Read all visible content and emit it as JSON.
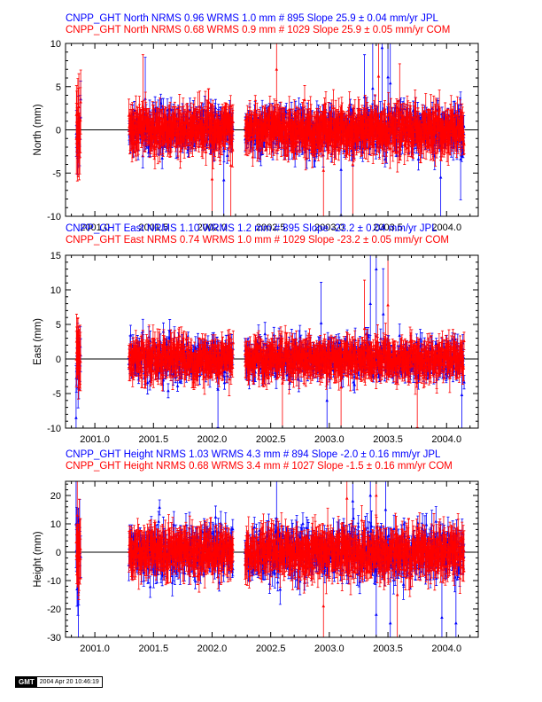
{
  "chart_data": [
    {
      "type": "scatter",
      "id": "north",
      "title_lines": [
        {
          "text": "CNPP_GHT North NRMS 0.96 WRMS  1.0 mm # 895 Slope   25.9 ±  0.04 mm/yr JPL",
          "color": "#0000ff"
        },
        {
          "text": "CNPP_GHT North NRMS 0.68 WRMS  0.9 mm # 1029 Slope   25.9 ±  0.05 mm/yr COM",
          "color": "#ff0000"
        }
      ],
      "xlabel": "",
      "ylabel": "North (mm)",
      "xlim": [
        2000.75,
        2004.27
      ],
      "ylim": [
        -10,
        10
      ],
      "xticks": [
        2001.0,
        2001.5,
        2002.0,
        2002.5,
        2003.0,
        2003.5,
        2004.0
      ],
      "xtick_labels": [
        "2001.0",
        "2001.5",
        "2002.0",
        "2002.5",
        "2003.0",
        "2003.5",
        "2004.0"
      ],
      "yticks": [
        -10,
        -5,
        0,
        5,
        10
      ],
      "ytick_labels": [
        "-10",
        "-5",
        "0",
        "5",
        "10"
      ],
      "zero_line": true,
      "series": [
        {
          "name": "JPL",
          "color": "#0000ff",
          "n": 895,
          "noise": 1.2,
          "err": 1.0,
          "segments": [
            [
              2000.84,
              2000.88
            ],
            [
              2001.29,
              2002.18
            ],
            [
              2002.28,
              2004.15
            ]
          ],
          "outliers": [
            [
              2001.43,
              3.6
            ],
            [
              2002.1,
              -5.8
            ],
            [
              2003.1,
              -4.6
            ],
            [
              2003.3,
              3.8
            ],
            [
              2003.37,
              4.8
            ],
            [
              2003.45,
              9.5
            ],
            [
              2003.5,
              6.1
            ],
            [
              2003.52,
              5.4
            ],
            [
              2003.95,
              -5.5
            ],
            [
              2004.12,
              -3.4
            ]
          ]
        },
        {
          "name": "COM",
          "color": "#ff0000",
          "n": 1029,
          "noise": 1.0,
          "err": 1.5,
          "segments": [
            [
              2000.84,
              2000.88
            ],
            [
              2001.29,
              2002.18
            ],
            [
              2002.28,
              2004.15
            ]
          ],
          "outliers": [
            [
              2001.41,
              2.8
            ],
            [
              2002.0,
              -5.7
            ],
            [
              2002.16,
              -4.1
            ],
            [
              2002.55,
              7.0
            ],
            [
              2002.95,
              -4.7
            ],
            [
              2003.2,
              -4.0
            ],
            [
              2003.42,
              6.2
            ],
            [
              2003.6,
              2.1
            ]
          ]
        }
      ]
    },
    {
      "type": "scatter",
      "id": "east",
      "title_lines": [
        {
          "text": "CNPP_GHT East NRMS 1.10 WRMS  1.2 mm # 895 Slope  -23.2 ±  0.04 mm/yr JPL",
          "color": "#0000ff"
        },
        {
          "text": "CNPP_GHT East NRMS 0.74 WRMS  1.0 mm # 1029 Slope  -23.2 ±  0.05 mm/yr COM",
          "color": "#ff0000"
        }
      ],
      "xlabel": "",
      "ylabel": "East (mm)",
      "xlim": [
        2000.75,
        2004.27
      ],
      "ylim": [
        -10,
        15
      ],
      "xticks": [
        2001.0,
        2001.5,
        2002.0,
        2002.5,
        2003.0,
        2003.5,
        2004.0
      ],
      "xtick_labels": [
        "2001.0",
        "2001.5",
        "2002.0",
        "2002.5",
        "2003.0",
        "2003.5",
        "2004.0"
      ],
      "yticks": [
        -10,
        -5,
        0,
        5,
        10,
        15
      ],
      "ytick_labels": [
        "-10",
        "-5",
        "0",
        "5",
        "10",
        "15"
      ],
      "zero_line": true,
      "series": [
        {
          "name": "JPL",
          "color": "#0000ff",
          "n": 895,
          "noise": 1.3,
          "err": 1.1,
          "segments": [
            [
              2000.84,
              2000.88
            ],
            [
              2001.29,
              2002.18
            ],
            [
              2002.28,
              2004.15
            ]
          ],
          "outliers": [
            [
              2000.84,
              -8.5
            ],
            [
              2002.05,
              -4.4
            ],
            [
              2002.93,
              5.2
            ],
            [
              2002.98,
              -6.0
            ],
            [
              2003.35,
              8.0
            ],
            [
              2003.4,
              13.0
            ],
            [
              2003.46,
              6.5
            ],
            [
              2004.13,
              -5.2
            ]
          ]
        },
        {
          "name": "COM",
          "color": "#ff0000",
          "n": 1029,
          "noise": 1.1,
          "err": 1.6,
          "segments": [
            [
              2000.84,
              2000.88
            ],
            [
              2001.29,
              2002.18
            ],
            [
              2002.28,
              2004.15
            ]
          ],
          "outliers": [
            [
              2002.6,
              -3.5
            ],
            [
              2003.1,
              -4.1
            ],
            [
              2003.3,
              4.4
            ],
            [
              2003.5,
              7.8
            ],
            [
              2003.75,
              -3.4
            ]
          ]
        }
      ]
    },
    {
      "type": "scatter",
      "id": "height",
      "title_lines": [
        {
          "text": "CNPP_GHT Height NRMS 1.03 WRMS  4.3 mm # 894 Slope   -2.0 ±  0.16 mm/yr JPL",
          "color": "#0000ff"
        },
        {
          "text": "CNPP_GHT Height NRMS 0.68 WRMS  3.4 mm # 1027 Slope   -1.5 ±  0.16 mm/yr COM",
          "color": "#ff0000"
        }
      ],
      "xlabel": "",
      "ylabel": "Height (mm)",
      "xlim": [
        2000.75,
        2004.27
      ],
      "ylim": [
        -30,
        25
      ],
      "xticks": [
        2001.0,
        2001.5,
        2002.0,
        2002.5,
        2003.0,
        2003.5,
        2004.0
      ],
      "xtick_labels": [
        "2001.0",
        "2001.5",
        "2002.0",
        "2002.5",
        "2003.0",
        "2003.5",
        "2004.0"
      ],
      "yticks": [
        -30,
        -20,
        -10,
        0,
        10,
        20
      ],
      "ytick_labels": [
        "-30",
        "-20",
        "-10",
        "0",
        "10",
        "20"
      ],
      "zero_line": true,
      "series": [
        {
          "name": "JPL",
          "color": "#0000ff",
          "n": 894,
          "noise": 4.3,
          "err": 3.5,
          "segments": [
            [
              2000.84,
              2000.88
            ],
            [
              2001.29,
              2002.18
            ],
            [
              2002.28,
              2004.15
            ]
          ],
          "outliers": [
            [
              2000.84,
              10.0
            ],
            [
              2000.86,
              -14.0
            ],
            [
              2002.55,
              12.0
            ],
            [
              2003.2,
              18.0
            ],
            [
              2003.35,
              20.0
            ],
            [
              2003.4,
              -22.0
            ],
            [
              2003.48,
              15.0
            ],
            [
              2003.52,
              -25.0
            ],
            [
              2003.96,
              -23.0
            ],
            [
              2004.08,
              -25.0
            ]
          ]
        },
        {
          "name": "COM",
          "color": "#ff0000",
          "n": 1027,
          "noise": 3.4,
          "err": 4.5,
          "segments": [
            [
              2000.84,
              2000.88
            ],
            [
              2001.29,
              2002.18
            ],
            [
              2002.28,
              2004.15
            ]
          ],
          "outliers": [
            [
              2000.85,
              13.0
            ],
            [
              2002.95,
              -19.0
            ],
            [
              2003.15,
              19.0
            ],
            [
              2003.4,
              20.0
            ],
            [
              2003.58,
              -15.0
            ]
          ]
        }
      ]
    }
  ],
  "stamp": {
    "logo": "GMT",
    "timestamp": "2004 Apr 20 10:46:19"
  }
}
